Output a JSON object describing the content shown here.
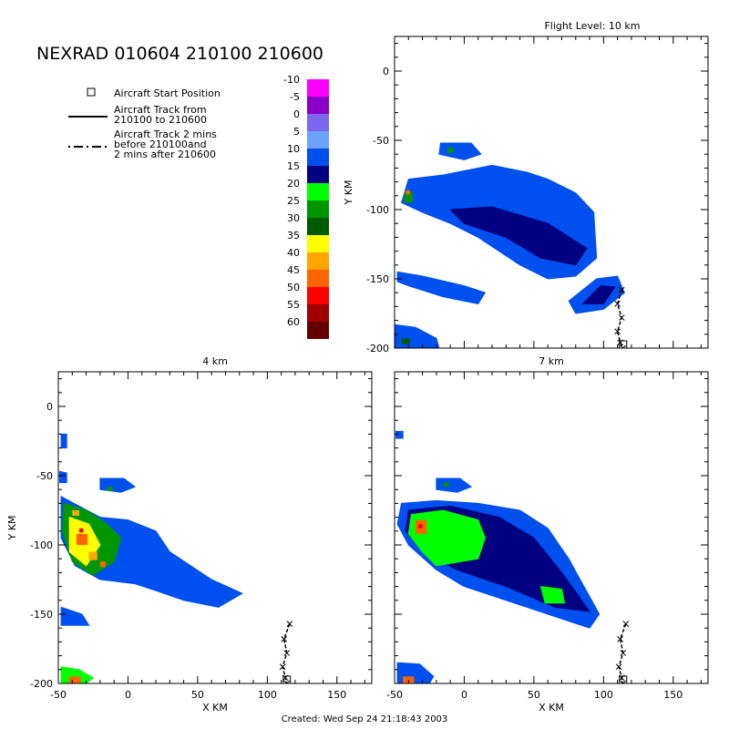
{
  "title": "NEXRAD 010604 210100 210600",
  "footer": "Created: Wed Sep 24 21:18:43 2003",
  "legend": {
    "start_position": "Aircraft Start Position",
    "track_line1": "Aircraft Track from",
    "track_line2": "210100 to 210600",
    "track2_line1": "Aircraft Track 2 mins",
    "track2_line2": "before 210100and",
    "track2_line3": "2 mins after 210600"
  },
  "colorbar": {
    "levels": [
      "-10",
      "-5",
      "0",
      "5",
      "10",
      "15",
      "20",
      "25",
      "30",
      "35",
      "40",
      "45",
      "50",
      "55",
      "60"
    ],
    "colors": [
      "#ff00ff",
      "#8b00c8",
      "#7b68ee",
      "#6aa2ff",
      "#0050f0",
      "#000080",
      "#00ff00",
      "#009600",
      "#005a00",
      "#ffff00",
      "#ffa500",
      "#ff6400",
      "#ff0000",
      "#a00000",
      "#640000"
    ]
  },
  "chart_data": [
    {
      "type": "heatmap",
      "title": "Flight Level: 10 km",
      "xlabel": "",
      "ylabel": "Y KM",
      "xlim": [
        -50,
        175
      ],
      "ylim": [
        -200,
        25
      ],
      "xticks": [],
      "yticks": [
        0,
        -50,
        -100,
        -150,
        -200
      ],
      "cells": [
        {
          "x": -43,
          "y": -87,
          "w": 6,
          "h": 8,
          "v": 25
        },
        {
          "x": -42,
          "y": -86,
          "w": 3,
          "h": 3,
          "v": 45
        },
        {
          "x": -12,
          "y": -55,
          "w": 4,
          "h": 4,
          "v": 25
        },
        {
          "x": -45,
          "y": -193,
          "w": 6,
          "h": 4,
          "v": 30
        }
      ],
      "regions": [
        {
          "v": 10,
          "points": [
            [
              -40,
              -78
            ],
            [
              -15,
              -75
            ],
            [
              20,
              -68
            ],
            [
              45,
              -73
            ],
            [
              60,
              -78
            ],
            [
              80,
              -88
            ],
            [
              93,
              -102
            ],
            [
              95,
              -135
            ],
            [
              80,
              -148
            ],
            [
              60,
              -150
            ],
            [
              40,
              -140
            ],
            [
              10,
              -120
            ],
            [
              -10,
              -110
            ],
            [
              -30,
              -102
            ],
            [
              -45,
              -95
            ]
          ]
        },
        {
          "v": 15,
          "points": [
            [
              -10,
              -100
            ],
            [
              20,
              -98
            ],
            [
              60,
              -110
            ],
            [
              88,
              -128
            ],
            [
              80,
              -140
            ],
            [
              55,
              -135
            ],
            [
              30,
              -120
            ],
            [
              0,
              -110
            ]
          ]
        },
        {
          "v": 10,
          "points": [
            [
              -17,
              -52
            ],
            [
              5,
              -52
            ],
            [
              12,
              -60
            ],
            [
              0,
              -64
            ],
            [
              -18,
              -60
            ]
          ]
        },
        {
          "v": 10,
          "points": [
            [
              -48,
              -145
            ],
            [
              -30,
              -148
            ],
            [
              0,
              -155
            ],
            [
              15,
              -160
            ],
            [
              10,
              -168
            ],
            [
              -15,
              -163
            ],
            [
              -40,
              -155
            ],
            [
              -48,
              -152
            ]
          ]
        },
        {
          "v": 10,
          "points": [
            [
              75,
              -166
            ],
            [
              95,
              -150
            ],
            [
              110,
              -148
            ],
            [
              115,
              -160
            ],
            [
              100,
              -172
            ],
            [
              80,
              -175
            ]
          ]
        },
        {
          "v": 15,
          "points": [
            [
              85,
              -168
            ],
            [
              98,
              -155
            ],
            [
              108,
              -156
            ],
            [
              100,
              -168
            ]
          ]
        },
        {
          "v": 10,
          "points": [
            [
              -50,
              -183
            ],
            [
              -35,
              -185
            ],
            [
              -20,
              -193
            ],
            [
              -18,
              -200
            ],
            [
              -50,
              -200
            ]
          ]
        }
      ],
      "track": [
        [
          113,
          -158
        ],
        [
          110,
          -168
        ],
        [
          113,
          -178
        ],
        [
          110,
          -188
        ],
        [
          112,
          -196
        ],
        [
          114,
          -200
        ]
      ]
    },
    {
      "type": "heatmap",
      "title": "4 km",
      "xlabel": "X KM",
      "ylabel": "Y KM",
      "xlim": [
        -50,
        175
      ],
      "ylim": [
        -200,
        25
      ],
      "xticks": [
        -50,
        0,
        50,
        100,
        150
      ],
      "yticks": [
        0,
        -50,
        -100,
        -150,
        -200
      ],
      "cells": [
        {
          "x": -37,
          "y": -92,
          "w": 8,
          "h": 8,
          "v": 45
        },
        {
          "x": -35,
          "y": -88,
          "w": 3,
          "h": 3,
          "v": 50
        },
        {
          "x": -28,
          "y": -105,
          "w": 6,
          "h": 6,
          "v": 40
        },
        {
          "x": -40,
          "y": -75,
          "w": 5,
          "h": 4,
          "v": 40
        },
        {
          "x": -20,
          "y": -112,
          "w": 4,
          "h": 4,
          "v": 45
        },
        {
          "x": -15,
          "y": -58,
          "w": 4,
          "h": 3,
          "v": 25
        },
        {
          "x": -42,
          "y": -195,
          "w": 8,
          "h": 5,
          "v": 45
        }
      ],
      "regions": [
        {
          "v": 10,
          "points": [
            [
              -48,
              -65
            ],
            [
              -35,
              -72
            ],
            [
              -20,
              -80
            ],
            [
              0,
              -82
            ],
            [
              20,
              -90
            ],
            [
              30,
              -105
            ],
            [
              60,
              -125
            ],
            [
              82,
              -135
            ],
            [
              65,
              -145
            ],
            [
              40,
              -140
            ],
            [
              20,
              -133
            ],
            [
              5,
              -128
            ],
            [
              -20,
              -125
            ],
            [
              -38,
              -115
            ],
            [
              -48,
              -95
            ]
          ]
        },
        {
          "v": 25,
          "points": [
            [
              -46,
              -70
            ],
            [
              -30,
              -75
            ],
            [
              -15,
              -85
            ],
            [
              -5,
              -95
            ],
            [
              -10,
              -112
            ],
            [
              -25,
              -122
            ],
            [
              -40,
              -112
            ],
            [
              -47,
              -90
            ]
          ]
        },
        {
          "v": 35,
          "points": [
            [
              -42,
              -80
            ],
            [
              -28,
              -85
            ],
            [
              -20,
              -100
            ],
            [
              -30,
              -115
            ],
            [
              -42,
              -105
            ]
          ]
        },
        {
          "v": 10,
          "points": [
            [
              -20,
              -52
            ],
            [
              -3,
              -52
            ],
            [
              5,
              -58
            ],
            [
              -5,
              -62
            ],
            [
              -20,
              -60
            ]
          ]
        },
        {
          "v": 10,
          "points": [
            [
              -48,
              -145
            ],
            [
              -33,
              -150
            ],
            [
              -28,
              -158
            ],
            [
              -48,
              -158
            ]
          ]
        },
        {
          "v": 10,
          "points": [
            [
              -48,
              -20
            ],
            [
              -44,
              -20
            ],
            [
              -44,
              -30
            ],
            [
              -48,
              -30
            ]
          ]
        },
        {
          "v": 10,
          "points": [
            [
              -49,
              -47
            ],
            [
              -44,
              -48
            ],
            [
              -44,
              -55
            ],
            [
              -49,
              -55
            ]
          ]
        },
        {
          "v": 20,
          "points": [
            [
              -48,
              -188
            ],
            [
              -35,
              -190
            ],
            [
              -25,
              -196
            ],
            [
              -30,
              -200
            ],
            [
              -48,
              -200
            ]
          ]
        }
      ],
      "track": [
        [
          116,
          -157
        ],
        [
          112,
          -168
        ],
        [
          114,
          -178
        ],
        [
          111,
          -188
        ],
        [
          113,
          -196
        ],
        [
          114,
          -200
        ]
      ]
    },
    {
      "type": "heatmap",
      "title": "7 km",
      "xlabel": "X KM",
      "ylabel": "",
      "xlim": [
        -50,
        175
      ],
      "ylim": [
        -200,
        25
      ],
      "xticks": [
        -50,
        0,
        50,
        100,
        150
      ],
      "yticks": [],
      "cells": [
        {
          "x": -35,
          "y": -82,
          "w": 8,
          "h": 10,
          "v": 45
        },
        {
          "x": -33,
          "y": -85,
          "w": 3,
          "h": 3,
          "v": 50
        },
        {
          "x": -15,
          "y": -55,
          "w": 4,
          "h": 3,
          "v": 25
        },
        {
          "x": -44,
          "y": -195,
          "w": 8,
          "h": 5,
          "v": 45
        }
      ],
      "regions": [
        {
          "v": 10,
          "points": [
            [
              -45,
              -70
            ],
            [
              -20,
              -68
            ],
            [
              10,
              -70
            ],
            [
              40,
              -75
            ],
            [
              60,
              -88
            ],
            [
              75,
              -110
            ],
            [
              97,
              -150
            ],
            [
              90,
              -160
            ],
            [
              60,
              -150
            ],
            [
              30,
              -140
            ],
            [
              0,
              -130
            ],
            [
              -20,
              -118
            ],
            [
              -40,
              -100
            ],
            [
              -48,
              -85
            ]
          ]
        },
        {
          "v": 15,
          "points": [
            [
              -40,
              -75
            ],
            [
              -10,
              -72
            ],
            [
              25,
              -80
            ],
            [
              50,
              -95
            ],
            [
              70,
              -120
            ],
            [
              90,
              -148
            ],
            [
              65,
              -145
            ],
            [
              30,
              -130
            ],
            [
              -5,
              -118
            ],
            [
              -30,
              -105
            ],
            [
              -42,
              -90
            ]
          ]
        },
        {
          "v": 20,
          "points": [
            [
              -38,
              -78
            ],
            [
              -15,
              -75
            ],
            [
              10,
              -82
            ],
            [
              15,
              -95
            ],
            [
              10,
              -110
            ],
            [
              -20,
              -115
            ],
            [
              -30,
              -105
            ],
            [
              -40,
              -92
            ]
          ]
        },
        {
          "v": 20,
          "points": [
            [
              55,
              -130
            ],
            [
              70,
              -132
            ],
            [
              72,
              -142
            ],
            [
              58,
              -142
            ]
          ]
        },
        {
          "v": 10,
          "points": [
            [
              -20,
              -52
            ],
            [
              -3,
              -52
            ],
            [
              5,
              -58
            ],
            [
              -5,
              -62
            ],
            [
              -20,
              -60
            ]
          ]
        },
        {
          "v": 10,
          "points": [
            [
              -49,
              -18
            ],
            [
              -44,
              -18
            ],
            [
              -44,
              -23
            ],
            [
              -49,
              -23
            ]
          ]
        },
        {
          "v": 10,
          "points": [
            [
              -48,
              -185
            ],
            [
              -32,
              -186
            ],
            [
              -22,
              -195
            ],
            [
              -25,
              -200
            ],
            [
              -48,
              -200
            ]
          ]
        }
      ],
      "track": [
        [
          116,
          -157
        ],
        [
          112,
          -168
        ],
        [
          114,
          -178
        ],
        [
          111,
          -188
        ],
        [
          113,
          -196
        ],
        [
          114,
          -200
        ]
      ]
    }
  ]
}
